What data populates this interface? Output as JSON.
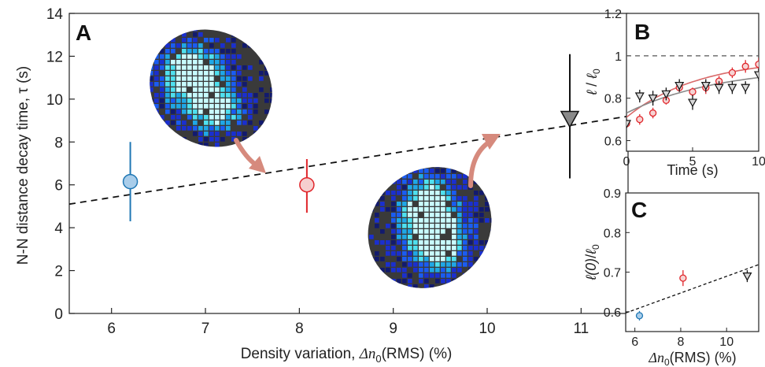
{
  "chart_data": [
    {
      "panel": "A",
      "type": "scatter",
      "xlabel": "Density variation, Δn₀(RMS) (%)",
      "ylabel": "N-N distance decay time, τ (s)",
      "xlim": [
        5.55,
        11.5
      ],
      "ylim": [
        0,
        14
      ],
      "xticks": [
        "6",
        "7",
        "8",
        "9",
        "10",
        "11"
      ],
      "yticks": [
        "0",
        "2",
        "4",
        "6",
        "8",
        "10",
        "12",
        "14"
      ],
      "points": [
        {
          "x": 6.2,
          "y": 6.15,
          "yerr_low": 4.3,
          "yerr_high": 8.0,
          "marker": "circle",
          "fill": "#a9cdea",
          "edge": "#1f77b4"
        },
        {
          "x": 8.08,
          "y": 6.0,
          "yerr_low": 4.7,
          "yerr_high": 7.2,
          "marker": "circle",
          "fill": "#f6cfcf",
          "edge": "#e0262b"
        },
        {
          "x": 10.88,
          "y": 9.1,
          "yerr_low": 6.3,
          "yerr_high": 12.1,
          "marker": "triangle-down",
          "fill": "#8a8a8a",
          "edge": "#111111"
        }
      ],
      "fit": {
        "x": [
          5.55,
          11.5
        ],
        "y": [
          5.1,
          9.2
        ],
        "style": "dashed"
      }
    },
    {
      "panel": "B",
      "type": "scatter",
      "xlabel": "Time (s)",
      "ylabel": "ℓ/ℓ₀",
      "xlim": [
        0,
        10
      ],
      "ylim": [
        0.55,
        1.2
      ],
      "xticks": [
        "0",
        "5",
        "10"
      ],
      "yticks": [
        "0.6",
        "0.8",
        "1",
        "1.2"
      ],
      "reference_line": 1,
      "series": [
        {
          "marker": "circle",
          "color": "#e0262b",
          "x": [
            0,
            1,
            2,
            3,
            4,
            5,
            6,
            7,
            8,
            9,
            10
          ],
          "y": [
            0.68,
            0.7,
            0.73,
            0.79,
            0.85,
            0.83,
            0.85,
            0.88,
            0.92,
            0.95,
            0.96
          ],
          "err": [
            0.02,
            0.025,
            0.025,
            0.02,
            0.02,
            0.02,
            0.03,
            0.025,
            0.025,
            0.03,
            0.03
          ]
        },
        {
          "marker": "triangle-down",
          "color": "#111111",
          "x": [
            0,
            1,
            2,
            3,
            4,
            5,
            6,
            7,
            8,
            9,
            10
          ],
          "y": [
            0.68,
            0.81,
            0.8,
            0.82,
            0.86,
            0.78,
            0.86,
            0.85,
            0.85,
            0.85,
            0.91
          ],
          "err": [
            0.02,
            0.03,
            0.035,
            0.03,
            0.03,
            0.035,
            0.03,
            0.03,
            0.03,
            0.03,
            0.03
          ]
        }
      ]
    },
    {
      "panel": "C",
      "type": "scatter",
      "xlabel": "Δn₀(RMS) (%)",
      "ylabel": "ℓ(0)/ℓ₀",
      "xlim": [
        5.6,
        11.4
      ],
      "ylim": [
        0.55,
        0.9
      ],
      "xticks": [
        "6",
        "8",
        "10"
      ],
      "yticks": [
        "0.6",
        "0.7",
        "0.8",
        "0.9"
      ],
      "points": [
        {
          "x": 6.2,
          "y": 0.59,
          "err": 0.012,
          "marker": "circle",
          "color": "#1f77b4"
        },
        {
          "x": 8.1,
          "y": 0.685,
          "err": 0.02,
          "marker": "circle",
          "color": "#e0262b"
        },
        {
          "x": 10.9,
          "y": 0.69,
          "err": 0.015,
          "marker": "triangle-down",
          "color": "#111111"
        }
      ],
      "fit": {
        "x": [
          5.6,
          11.4
        ],
        "y": [
          0.597,
          0.719
        ]
      }
    }
  ],
  "panel_labels": {
    "a": "A",
    "b": "B",
    "c": "C"
  },
  "labels": {
    "a_ylabel": "N-N distance decay time, τ (s)",
    "a_xlabel_prefix": "Density variation, ",
    "a_xlabel_sym": "Δn",
    "a_xlabel_sub": "0",
    "a_xlabel_suffix": "(RMS) (%)",
    "b_xlabel": "Time (s)",
    "b_ylabel_num": "ℓ",
    "b_ylabel_den": "ℓ",
    "b_ylabel_sub": "0",
    "c_ylabel_num": "ℓ(0)",
    "c_ylabel_den": "ℓ",
    "c_ylabel_sub": "0",
    "c_xlabel_sym": "Δn",
    "c_xlabel_sub": "0",
    "c_xlabel_suffix": "(RMS) (%)"
  },
  "colors": {
    "blue": "#1f77b4",
    "red": "#e0262b",
    "black": "#111111",
    "arrow": "#d68a7d",
    "inset_bg": "#3a3a3a"
  }
}
